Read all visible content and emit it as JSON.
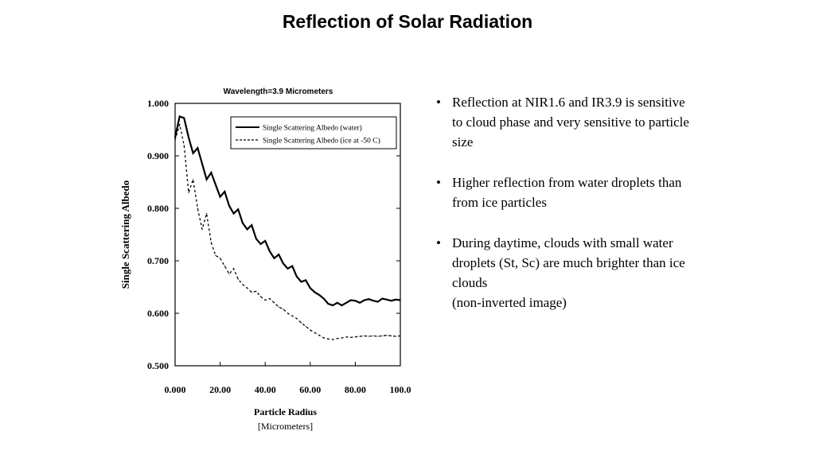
{
  "slide": {
    "title": "Reflection of Solar Radiation",
    "bullets": [
      "Reflection at NIR1.6 and IR3.9 is sensitive to cloud phase and very sensitive to particle size",
      "Higher reflection from water droplets than from ice particles",
      "During daytime, clouds with small water droplets (St, Sc) are much brighter than ice clouds\n(non-inverted image)"
    ]
  },
  "chart_data": {
    "type": "line",
    "title": "Wavelength=3.9  Micrometers",
    "xlabel": "Particle Radius",
    "xlabel2": "[Micrometers]",
    "ylabel": "Single Scattering Albedo",
    "xlim": [
      0,
      100
    ],
    "ylim": [
      0.5,
      1.0
    ],
    "xticks": [
      "0.000",
      "20.00",
      "40.00",
      "60.00",
      "80.00",
      "100.0"
    ],
    "yticks": [
      "1.000",
      "0.900",
      "0.800",
      "0.700",
      "0.600",
      "0.500"
    ],
    "legend_position": "top-right",
    "grid": false,
    "series": [
      {
        "name": "Single Scattering Albedo (water)",
        "style": "solid",
        "x": [
          0,
          2,
          4,
          6,
          8,
          10,
          12,
          14,
          16,
          18,
          20,
          22,
          24,
          26,
          28,
          30,
          32,
          34,
          36,
          38,
          40,
          42,
          44,
          46,
          48,
          50,
          52,
          54,
          56,
          58,
          60,
          62,
          64,
          66,
          68,
          70,
          72,
          74,
          76,
          78,
          80,
          82,
          84,
          86,
          88,
          90,
          92,
          94,
          96,
          98,
          100
        ],
        "y": [
          0.935,
          0.975,
          0.972,
          0.935,
          0.905,
          0.915,
          0.885,
          0.855,
          0.868,
          0.845,
          0.822,
          0.832,
          0.805,
          0.79,
          0.798,
          0.772,
          0.76,
          0.768,
          0.742,
          0.732,
          0.738,
          0.718,
          0.705,
          0.712,
          0.695,
          0.685,
          0.69,
          0.67,
          0.66,
          0.663,
          0.648,
          0.64,
          0.635,
          0.628,
          0.618,
          0.615,
          0.62,
          0.615,
          0.62,
          0.625,
          0.624,
          0.62,
          0.625,
          0.627,
          0.624,
          0.622,
          0.628,
          0.626,
          0.624,
          0.626,
          0.625
        ]
      },
      {
        "name": "Single Scattering Albedo (ice at -50 C)",
        "style": "dashed",
        "x": [
          0,
          2,
          4,
          6,
          8,
          10,
          12,
          14,
          16,
          18,
          20,
          22,
          24,
          26,
          28,
          30,
          32,
          34,
          36,
          38,
          40,
          42,
          44,
          46,
          48,
          50,
          52,
          54,
          56,
          58,
          60,
          62,
          64,
          66,
          68,
          70,
          72,
          74,
          76,
          78,
          80,
          82,
          84,
          86,
          88,
          90,
          92,
          94,
          96,
          98,
          100
        ],
        "y": [
          0.93,
          0.96,
          0.92,
          0.83,
          0.855,
          0.8,
          0.76,
          0.79,
          0.735,
          0.71,
          0.705,
          0.69,
          0.675,
          0.685,
          0.665,
          0.655,
          0.648,
          0.64,
          0.642,
          0.632,
          0.625,
          0.628,
          0.62,
          0.612,
          0.608,
          0.6,
          0.595,
          0.59,
          0.582,
          0.575,
          0.568,
          0.563,
          0.558,
          0.553,
          0.551,
          0.55,
          0.552,
          0.553,
          0.555,
          0.554,
          0.555,
          0.556,
          0.557,
          0.556,
          0.557,
          0.556,
          0.557,
          0.558,
          0.557,
          0.556,
          0.557
        ]
      }
    ]
  }
}
